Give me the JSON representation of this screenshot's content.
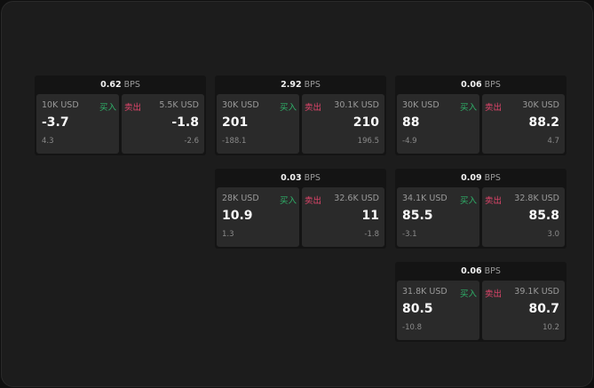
{
  "labels": {
    "unit": "BPS",
    "buy": "买入",
    "sell": "卖出"
  },
  "colors": {
    "buy": "#2fb36a",
    "sell": "#e0456b"
  },
  "cards": [
    {
      "bps": "0.62",
      "buy": {
        "size": "10K USD",
        "price": "-3.7",
        "delta": "4.3"
      },
      "sell": {
        "size": "5.5K USD",
        "price": "-1.8",
        "delta": "-2.6"
      }
    },
    {
      "bps": "2.92",
      "buy": {
        "size": "30K USD",
        "price": "201",
        "delta": "-188.1"
      },
      "sell": {
        "size": "30.1K USD",
        "price": "210",
        "delta": "196.5"
      }
    },
    {
      "bps": "0.06",
      "buy": {
        "size": "30K USD",
        "price": "88",
        "delta": "-4.9"
      },
      "sell": {
        "size": "30K USD",
        "price": "88.2",
        "delta": "4.7"
      }
    },
    {
      "bps": "0.03",
      "buy": {
        "size": "28K USD",
        "price": "10.9",
        "delta": "1.3"
      },
      "sell": {
        "size": "32.6K USD",
        "price": "11",
        "delta": "-1.8"
      }
    },
    {
      "bps": "0.09",
      "buy": {
        "size": "34.1K USD",
        "price": "85.5",
        "delta": "-3.1"
      },
      "sell": {
        "size": "32.8K USD",
        "price": "85.8",
        "delta": "3.0"
      }
    },
    {
      "bps": "0.06",
      "buy": {
        "size": "31.8K USD",
        "price": "80.5",
        "delta": "-10.8"
      },
      "sell": {
        "size": "39.1K USD",
        "price": "80.7",
        "delta": "10.2"
      }
    }
  ]
}
